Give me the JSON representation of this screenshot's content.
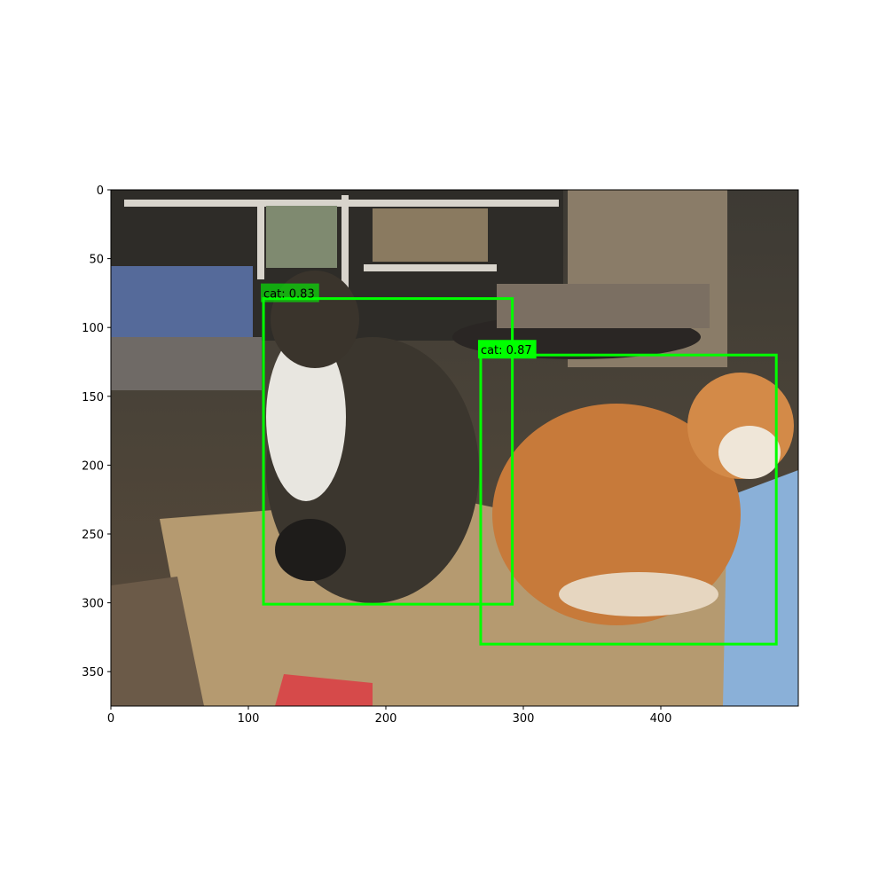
{
  "chart_data": {
    "type": "detection",
    "xlim": [
      0,
      500
    ],
    "ylim": [
      375,
      0
    ],
    "xticks": [
      0,
      100,
      200,
      300,
      400
    ],
    "yticks": [
      0,
      50,
      100,
      150,
      200,
      250,
      300,
      350
    ],
    "color": "#00ff00",
    "boxes": [
      {
        "label": "cat: 0.83",
        "xmin": 111,
        "ymin": 79,
        "xmax": 292,
        "ymax": 301
      },
      {
        "label": "cat: 0.87",
        "xmin": 269,
        "ymin": 120,
        "xmax": 484,
        "ymax": 330
      }
    ]
  }
}
